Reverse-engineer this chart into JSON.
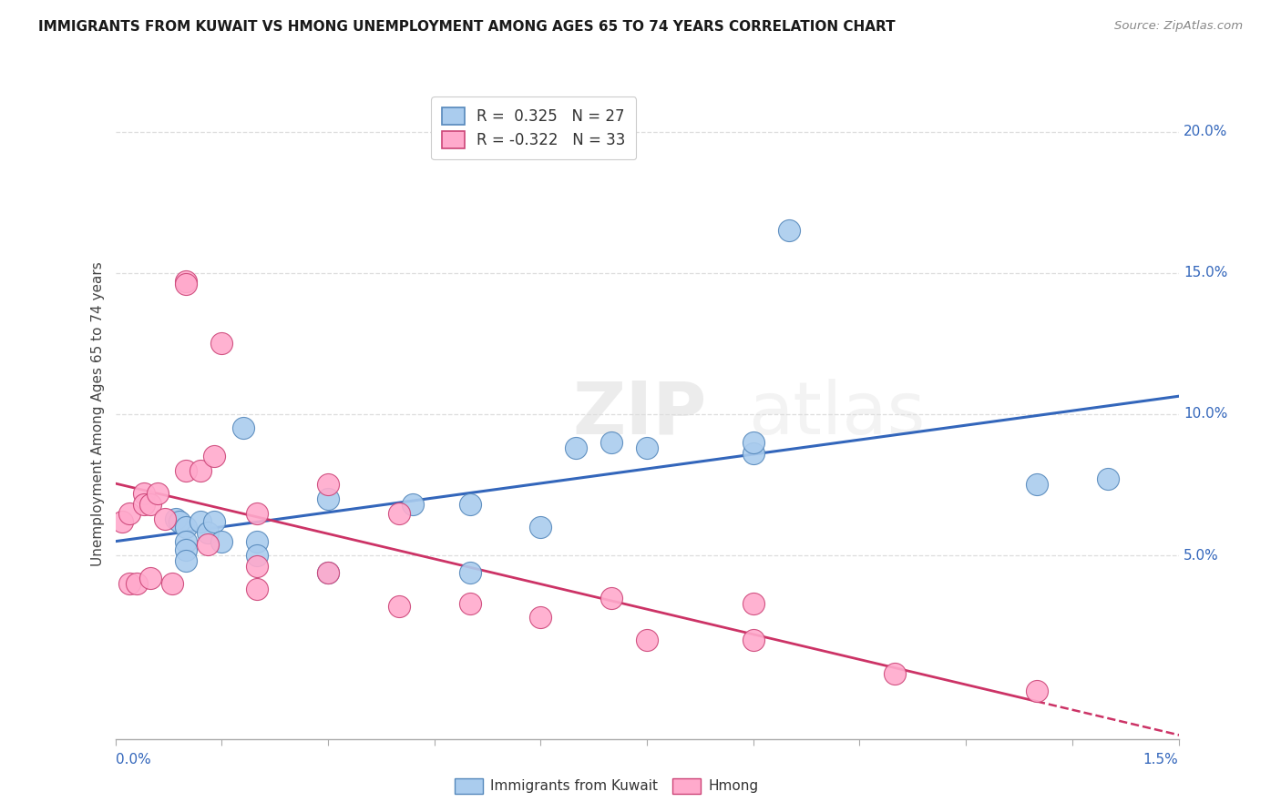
{
  "title": "IMMIGRANTS FROM KUWAIT VS HMONG UNEMPLOYMENT AMONG AGES 65 TO 74 YEARS CORRELATION CHART",
  "source": "Source: ZipAtlas.com",
  "ylabel": "Unemployment Among Ages 65 to 74 years",
  "y_tick_values": [
    0.05,
    0.1,
    0.15,
    0.2
  ],
  "y_tick_labels": [
    "5.0%",
    "10.0%",
    "15.0%",
    "20.0%"
  ],
  "x_min": 0.0,
  "x_max": 0.015,
  "y_min": -0.015,
  "y_max": 0.215,
  "r_kuwait": "0.325",
  "n_kuwait": "27",
  "r_hmong": "-0.322",
  "n_hmong": "33",
  "kuwait_face_color": "#AACCEE",
  "kuwait_edge_color": "#5588BB",
  "hmong_face_color": "#FFAACC",
  "hmong_edge_color": "#CC4477",
  "kuwait_line_color": "#3366BB",
  "hmong_line_color": "#CC3366",
  "legend_label_kuwait": "Immigrants from Kuwait",
  "legend_label_hmong": "Hmong",
  "watermark_zip": "ZIP",
  "watermark_atlas": "atlas",
  "grid_color": "#DDDDDD",
  "kuwait_x": [
    0.00085,
    0.0009,
    0.001,
    0.001,
    0.001,
    0.001,
    0.0012,
    0.0013,
    0.0014,
    0.0015,
    0.0018,
    0.002,
    0.002,
    0.003,
    0.003,
    0.0042,
    0.005,
    0.005,
    0.006,
    0.0065,
    0.007,
    0.0075,
    0.009,
    0.009,
    0.0095,
    0.013,
    0.014
  ],
  "kuwait_y": [
    0.063,
    0.062,
    0.06,
    0.055,
    0.052,
    0.048,
    0.062,
    0.058,
    0.062,
    0.055,
    0.095,
    0.055,
    0.05,
    0.07,
    0.044,
    0.068,
    0.068,
    0.044,
    0.06,
    0.088,
    0.09,
    0.088,
    0.086,
    0.09,
    0.165,
    0.075,
    0.077
  ],
  "hmong_x": [
    0.0001,
    0.0002,
    0.0002,
    0.0003,
    0.0004,
    0.0004,
    0.0005,
    0.0005,
    0.0006,
    0.0007,
    0.0008,
    0.001,
    0.001,
    0.001,
    0.0012,
    0.0013,
    0.0014,
    0.0015,
    0.002,
    0.002,
    0.002,
    0.003,
    0.003,
    0.004,
    0.004,
    0.005,
    0.006,
    0.007,
    0.0075,
    0.009,
    0.009,
    0.011,
    0.013
  ],
  "hmong_y": [
    0.062,
    0.065,
    0.04,
    0.04,
    0.072,
    0.068,
    0.068,
    0.042,
    0.072,
    0.063,
    0.04,
    0.147,
    0.146,
    0.08,
    0.08,
    0.054,
    0.085,
    0.125,
    0.065,
    0.046,
    0.038,
    0.075,
    0.044,
    0.065,
    0.032,
    0.033,
    0.028,
    0.035,
    0.02,
    0.033,
    0.02,
    0.008,
    0.002
  ]
}
